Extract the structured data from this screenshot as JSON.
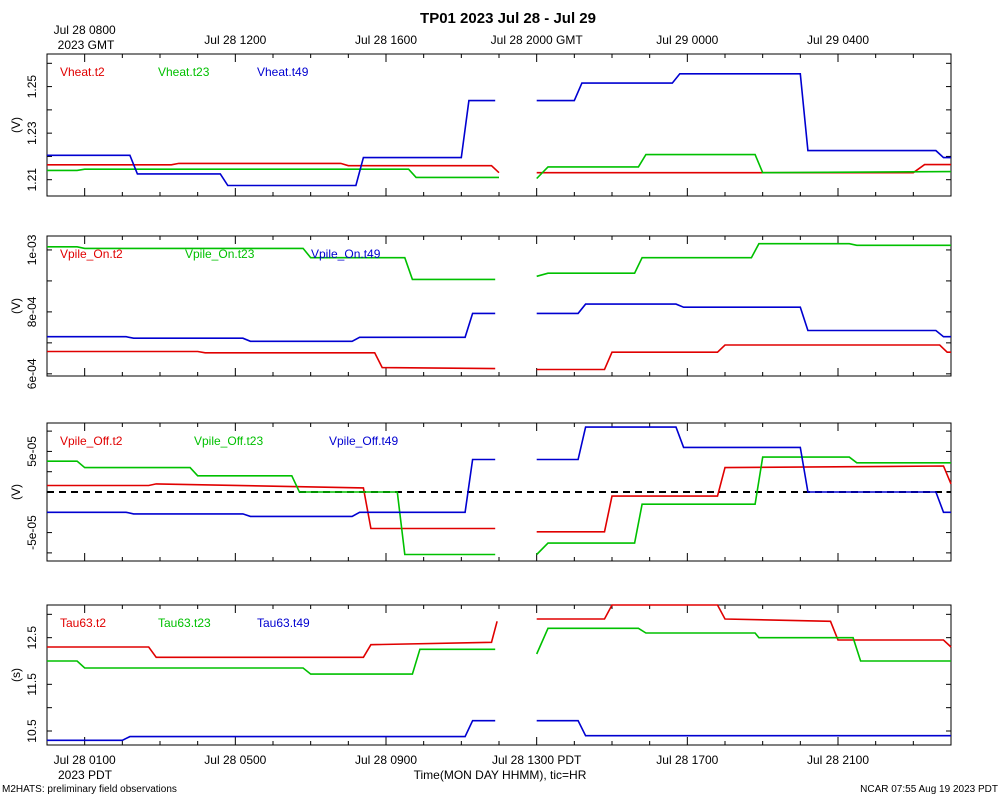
{
  "title": "TP01 2023 Jul 28 - Jul 29",
  "top_axis": {
    "labels": [
      "Jul 28 0800",
      "Jul 28 1200",
      "Jul 28 1600",
      "Jul 28 2000 GMT",
      "Jul 29 0000",
      "Jul 29 0400"
    ],
    "sublabel": "2023 GMT"
  },
  "bottom_axis": {
    "labels": [
      "Jul 28 0100",
      "Jul 28 0500",
      "Jul 28 0900",
      "Jul 28 1300 PDT",
      "Jul 28 1700",
      "Jul 28 2100"
    ],
    "sublabel": "2023 PDT",
    "title": "Time(MON DAY HHMM), tic=HR"
  },
  "footer": {
    "left": "M2HATS: preliminary field observations",
    "right": "NCAR 07:55 Aug 19 2023 PDT"
  },
  "colors": {
    "t2": "#e00000",
    "t23": "#00c000",
    "t49": "#0000d0",
    "zero": "#000000"
  },
  "chart_data": [
    {
      "type": "line",
      "ylabel": "(V)",
      "ylim": [
        1.203,
        1.264
      ],
      "yticks": [
        1.21,
        1.23,
        1.25
      ],
      "ytick_labels": [
        "1.21",
        "1.23",
        "1.25"
      ],
      "x_units": "hours PDT since Jul 28 00:00",
      "series": [
        {
          "name": "Vheat.t2",
          "color_key": "t2",
          "x": [
            0.0,
            3.3,
            3.5,
            7.8,
            8.0,
            11.8,
            12.0,
            null,
            13.0,
            19.5,
            19.8,
            23.0,
            23.3,
            24.0
          ],
          "y": [
            1.2164,
            1.2164,
            1.217,
            1.217,
            1.216,
            1.216,
            1.213,
            null,
            1.213,
            1.213,
            1.213,
            1.213,
            1.2165,
            1.2165
          ]
        },
        {
          "name": "Vheat.t23",
          "color_key": "t23",
          "x": [
            0.0,
            0.8,
            1.0,
            9.6,
            9.8,
            11.8,
            12.0,
            null,
            13.0,
            13.3,
            15.7,
            15.9,
            18.8,
            19.0,
            24.0
          ],
          "y": [
            1.214,
            1.214,
            1.2145,
            1.2145,
            1.211,
            1.211,
            1.211,
            null,
            1.2105,
            1.2155,
            1.2155,
            1.2208,
            1.2208,
            1.213,
            1.2135
          ]
        },
        {
          "name": "Vheat.t49",
          "color_key": "t49",
          "x": [
            0.0,
            2.2,
            2.4,
            4.6,
            4.8,
            8.2,
            8.4,
            11.0,
            11.2,
            11.9,
            null,
            13.0,
            14.0,
            14.2,
            16.6,
            16.8,
            20.0,
            20.2,
            23.6,
            23.8,
            24.0
          ],
          "y": [
            1.2205,
            1.2205,
            1.2125,
            1.2125,
            1.2075,
            1.2075,
            1.2195,
            1.2195,
            1.244,
            1.244,
            null,
            1.244,
            1.244,
            1.2515,
            1.2515,
            1.2555,
            1.2555,
            1.2225,
            1.2225,
            1.2195,
            1.2195
          ]
        }
      ]
    },
    {
      "type": "line",
      "ylabel": "(V)",
      "ylim": [
        0.000593,
        0.001045
      ],
      "yticks": [
        0.0006,
        0.0008,
        0.001
      ],
      "ytick_labels": [
        "6e-04",
        "8e-04",
        "1e-03"
      ],
      "x_units": "hours PDT since Jul 28 00:00",
      "series": [
        {
          "name": "Vpile_On.t2",
          "color_key": "t2",
          "x": [
            0.0,
            4.0,
            4.2,
            8.7,
            8.9,
            11.9,
            null,
            13.0,
            14.8,
            15.0,
            17.8,
            18.0,
            23.7,
            23.9,
            24.0
          ],
          "y": [
            0.000672,
            0.000672,
            0.000668,
            0.000668,
            0.00062,
            0.000617,
            null,
            0.000614,
            0.000614,
            0.00067,
            0.00067,
            0.000693,
            0.000693,
            0.00067,
            0.00067
          ]
        },
        {
          "name": "Vpile_On.t23",
          "color_key": "t23",
          "x": [
            0.0,
            0.8,
            1.0,
            6.8,
            7.0,
            9.5,
            9.7,
            11.9,
            null,
            13.0,
            13.3,
            15.6,
            15.8,
            18.7,
            18.9,
            21.3,
            21.5,
            24.0
          ],
          "y": [
            0.00101,
            0.00101,
            0.001005,
            0.001005,
            0.000975,
            0.000975,
            0.000905,
            0.000905,
            null,
            0.000915,
            0.000925,
            0.000925,
            0.000975,
            0.000975,
            0.00102,
            0.00102,
            0.001015,
            0.001015
          ]
        },
        {
          "name": "Vpile_On.t49",
          "color_key": "t49",
          "x": [
            0.0,
            2.1,
            2.3,
            5.2,
            5.4,
            8.1,
            8.3,
            11.1,
            11.3,
            11.9,
            null,
            13.0,
            14.1,
            14.3,
            16.7,
            16.9,
            20.0,
            20.2,
            23.6,
            23.8,
            24.0
          ],
          "y": [
            0.00072,
            0.00072,
            0.000715,
            0.000715,
            0.000705,
            0.000705,
            0.000718,
            0.000718,
            0.000795,
            0.000795,
            null,
            0.000795,
            0.000795,
            0.000825,
            0.000825,
            0.000815,
            0.000815,
            0.00074,
            0.00074,
            0.00072,
            0.00072
          ]
        }
      ]
    },
    {
      "type": "line",
      "ylabel": "(V)",
      "ylim": [
        -8.5e-05,
        8.5e-05
      ],
      "yticks": [
        -5e-05,
        0,
        5e-05
      ],
      "ytick_labels": [
        "-5e-05",
        "",
        "5e-05"
      ],
      "zero_line": true,
      "x_units": "hours PDT since Jul 28 00:00",
      "series": [
        {
          "name": "Vpile_Off.t2",
          "color_key": "t2",
          "x": [
            0.0,
            2.7,
            2.9,
            8.4,
            8.6,
            11.9,
            null,
            13.0,
            14.8,
            15.0,
            17.8,
            18.0,
            23.8,
            24.0
          ],
          "y": [
            8e-06,
            8e-06,
            1e-05,
            5e-06,
            -4.5e-05,
            -4.5e-05,
            null,
            -4.9e-05,
            -4.9e-05,
            -5e-06,
            -5e-06,
            3e-05,
            3.2e-05,
            1e-05
          ]
        },
        {
          "name": "Vpile_Off.t23",
          "color_key": "t23",
          "x": [
            0.0,
            0.8,
            1.0,
            3.8,
            4.0,
            6.5,
            6.7,
            9.3,
            9.5,
            11.9,
            null,
            13.0,
            13.3,
            15.6,
            15.8,
            18.8,
            19.0,
            21.3,
            21.5,
            24.0
          ],
          "y": [
            3.8e-05,
            3.8e-05,
            3e-05,
            3e-05,
            2e-05,
            2e-05,
            0.0,
            0.0,
            -7.7e-05,
            -7.7e-05,
            null,
            -7.7e-05,
            -6.3e-05,
            -6.3e-05,
            -1.5e-05,
            -1.5e-05,
            4.3e-05,
            4.3e-05,
            3.6e-05,
            3.6e-05
          ]
        },
        {
          "name": "Vpile_Off.t49",
          "color_key": "t49",
          "x": [
            0.0,
            2.1,
            2.3,
            5.2,
            5.4,
            8.1,
            8.3,
            11.1,
            11.3,
            11.9,
            null,
            13.0,
            14.1,
            14.3,
            16.7,
            16.9,
            20.0,
            20.2,
            23.6,
            23.8,
            24.0
          ],
          "y": [
            -2.5e-05,
            -2.5e-05,
            -2.7e-05,
            -2.7e-05,
            -3e-05,
            -3e-05,
            -2.5e-05,
            -2.5e-05,
            4e-05,
            4e-05,
            null,
            4e-05,
            4e-05,
            8e-05,
            8e-05,
            5.5e-05,
            5.5e-05,
            0.0,
            0.0,
            -2.5e-05,
            -2.5e-05
          ]
        }
      ]
    },
    {
      "type": "line",
      "ylabel": "(s)",
      "ylim": [
        10.2,
        13.2
      ],
      "yticks": [
        10.5,
        11.5,
        12.5
      ],
      "ytick_labels": [
        "10.5",
        "11.5",
        "12.5"
      ],
      "x_units": "hours PDT since Jul 28 00:00",
      "series": [
        {
          "name": "Tau63.t2",
          "color_key": "t2",
          "x": [
            0.0,
            2.7,
            2.9,
            8.4,
            8.6,
            11.8,
            11.95,
            null,
            13.0,
            14.8,
            15.0,
            17.8,
            18.0,
            20.8,
            21.0,
            23.8,
            24.0
          ],
          "y": [
            12.3,
            12.3,
            12.08,
            12.08,
            12.35,
            12.4,
            12.85,
            null,
            12.9,
            12.9,
            13.2,
            13.2,
            12.9,
            12.85,
            12.45,
            12.45,
            12.3
          ]
        },
        {
          "name": "Tau63.t23",
          "color_key": "t23",
          "x": [
            0.0,
            0.8,
            1.0,
            6.8,
            7.0,
            9.7,
            9.9,
            11.9,
            null,
            13.0,
            13.3,
            15.7,
            15.9,
            18.8,
            18.9,
            21.4,
            21.6,
            24.0
          ],
          "y": [
            12.0,
            12.0,
            11.85,
            11.85,
            11.72,
            11.72,
            12.25,
            12.25,
            null,
            12.15,
            12.7,
            12.7,
            12.6,
            12.6,
            12.5,
            12.5,
            12.0,
            12.0
          ]
        },
        {
          "name": "Tau63.t49",
          "color_key": "t49",
          "x": [
            0.0,
            2.0,
            2.2,
            11.1,
            11.3,
            11.9,
            null,
            13.0,
            14.1,
            14.3,
            24.0
          ],
          "y": [
            10.3,
            10.3,
            10.38,
            10.38,
            10.72,
            10.72,
            null,
            10.72,
            10.72,
            10.4,
            10.4
          ]
        }
      ]
    }
  ]
}
